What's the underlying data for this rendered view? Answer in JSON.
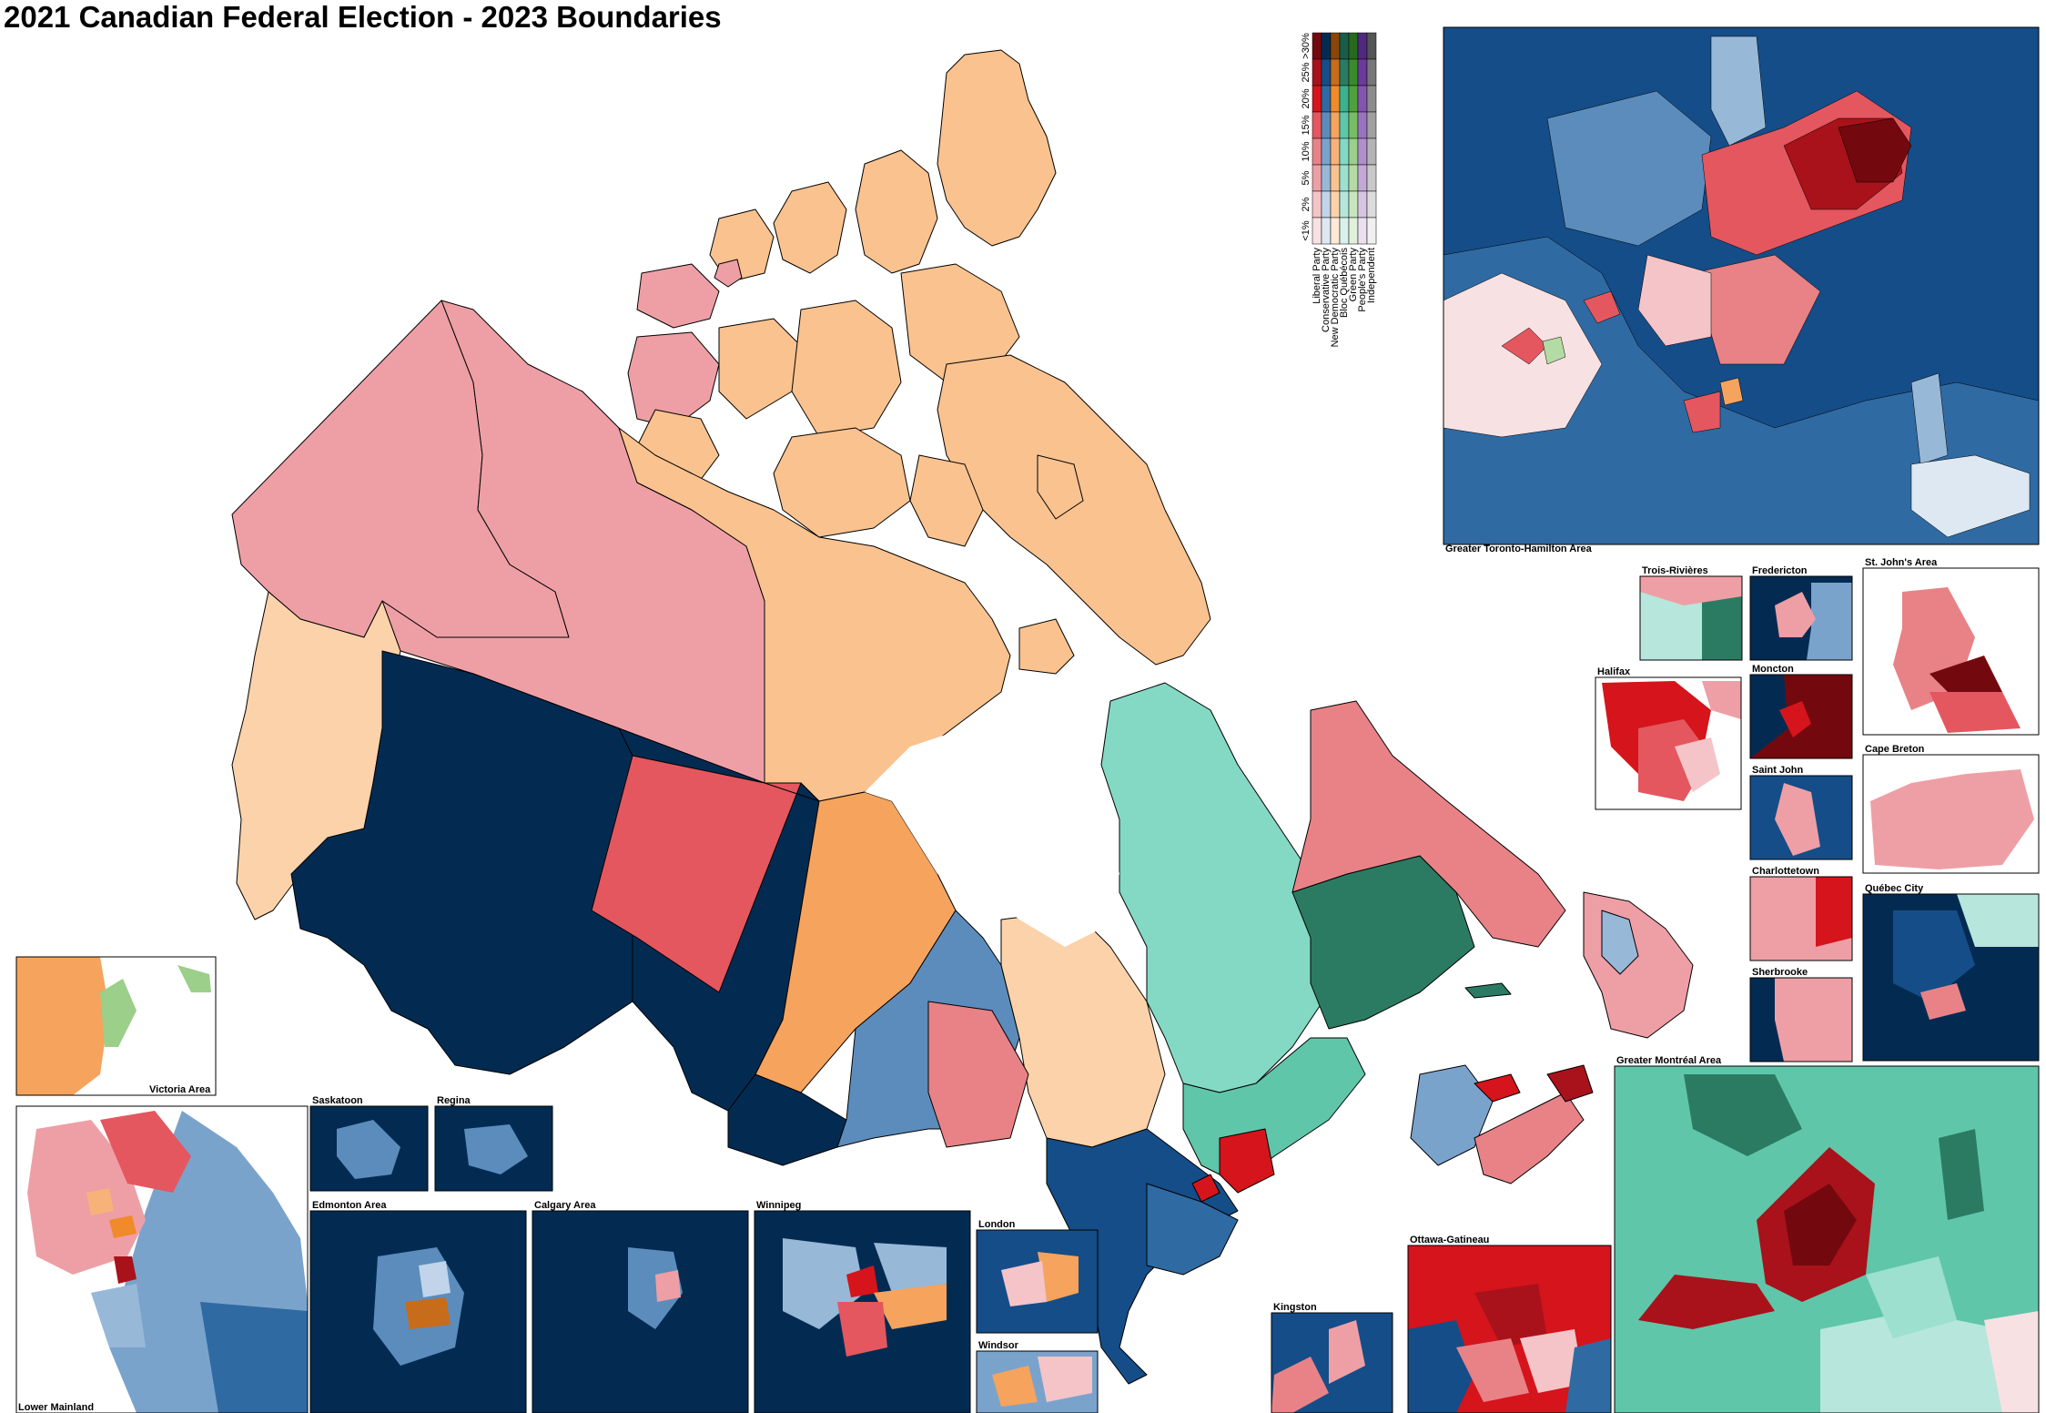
{
  "title": "2021 Canadian Federal Election - 2023 Boundaries",
  "legend": {
    "parties": [
      {
        "name": "Liberal Party",
        "colors": [
          "#f8e1e3",
          "#f4c4c8",
          "#ee9fa5",
          "#e88287",
          "#e4575f",
          "#d5141b",
          "#a9121a",
          "#73090e"
        ]
      },
      {
        "name": "Conservative Party",
        "colors": [
          "#dde8f3",
          "#c1d4e9",
          "#98b8d8",
          "#7aa3cc",
          "#5b8cbc",
          "#2f6aa3",
          "#154d88",
          "#032b52"
        ]
      },
      {
        "name": "New Democratic Party",
        "colors": [
          "#fde9d6",
          "#fbd2aa",
          "#f9c28f",
          "#f7b27a",
          "#f5a35d",
          "#f08a2a",
          "#c76c1a",
          "#8a4508"
        ]
      },
      {
        "name": "Bloc Québécois",
        "colors": [
          "#d9f1ec",
          "#b6e6dc",
          "#9de0d0",
          "#84d9c4",
          "#5fc6aa",
          "#3cb28e",
          "#2b7b62",
          "#1a5c48"
        ]
      },
      {
        "name": "Green Party",
        "colors": [
          "#e0f0da",
          "#c8e5bd",
          "#b3dca4",
          "#9bcf8a",
          "#78bd63",
          "#4fa23a",
          "#3a8a2a",
          "#276a1c"
        ]
      },
      {
        "name": "People's Party",
        "colors": [
          "#ebe0f0",
          "#d8c5e4",
          "#c4a9d7",
          "#b08fcb",
          "#9a73bf",
          "#8256b0",
          "#6a3b9b",
          "#4e2a7e"
        ]
      },
      {
        "name": "Independent",
        "colors": [
          "#f0f0f0",
          "#dcdcdc",
          "#c8c8c8",
          "#b4b4b4",
          "#a0a0a0",
          "#8c8c8c",
          "#777777",
          "#555555"
        ]
      }
    ],
    "margins": [
      "<1%",
      "2%",
      "5%",
      "10%",
      "15%",
      "20%",
      "25%",
      ">30%"
    ]
  },
  "insets": {
    "toronto": "Greater Toronto-Hamilton Area",
    "trois_rivieres": "Trois-Rivières",
    "fredericton": "Fredericton",
    "st_johns": "St. John's Area",
    "halifax": "Halifax",
    "moncton": "Moncton",
    "saint_john": "Saint John",
    "cape_breton": "Cape Breton",
    "charlottetown": "Charlottetown",
    "quebec_city": "Québec City",
    "sherbrooke": "Sherbrooke",
    "montreal": "Greater Montréal Area",
    "victoria": "Victoria Area",
    "saskatoon": "Saskatoon",
    "regina": "Regina",
    "lower_mainland": "Lower Mainland",
    "edmonton": "Edmonton Area",
    "calgary": "Calgary Area",
    "winnipeg": "Winnipeg",
    "london": "London",
    "windsor": "Windsor",
    "kingston": "Kingston",
    "ottawa": "Ottawa-Gatineau"
  }
}
